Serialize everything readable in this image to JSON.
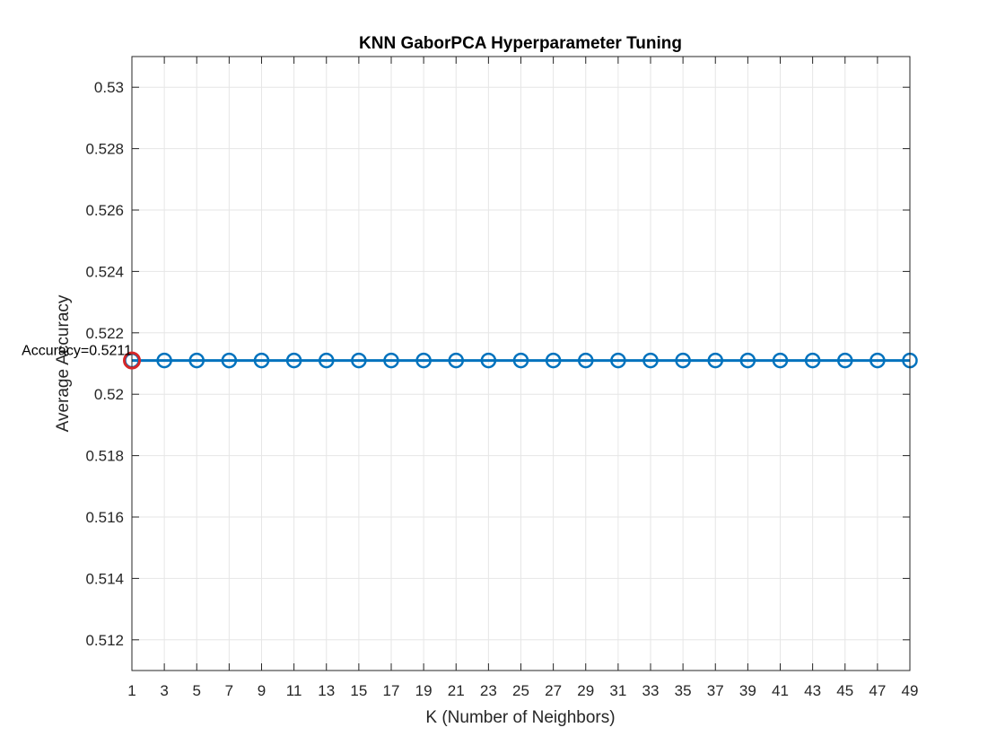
{
  "chart_data": {
    "type": "line",
    "title": "KNN GaborPCA Hyperparameter Tuning",
    "xlabel": "K (Number of Neighbors)",
    "ylabel": "Average Accuracy",
    "xlim": [
      1,
      49
    ],
    "ylim": [
      0.511,
      0.531
    ],
    "x_ticks": [
      1,
      3,
      5,
      7,
      9,
      11,
      13,
      15,
      17,
      19,
      21,
      23,
      25,
      27,
      29,
      31,
      33,
      35,
      37,
      39,
      41,
      43,
      45,
      47,
      49
    ],
    "y_ticks": [
      0.512,
      0.514,
      0.516,
      0.518,
      0.52,
      0.522,
      0.524,
      0.526,
      0.528,
      0.53
    ],
    "grid": true,
    "series": [
      {
        "x": [
          1,
          3,
          5,
          7,
          9,
          11,
          13,
          15,
          17,
          19,
          21,
          23,
          25,
          27,
          29,
          31,
          33,
          35,
          37,
          39,
          41,
          43,
          45,
          47,
          49
        ],
        "y": [
          0.5211,
          0.5211,
          0.5211,
          0.5211,
          0.5211,
          0.5211,
          0.5211,
          0.5211,
          0.5211,
          0.5211,
          0.5211,
          0.5211,
          0.5211,
          0.5211,
          0.5211,
          0.5211,
          0.5211,
          0.5211,
          0.5211,
          0.5211,
          0.5211,
          0.5211,
          0.5211,
          0.5211,
          0.5211
        ],
        "color": "#0072BD",
        "marker": "circle"
      }
    ],
    "highlight": {
      "x": 1,
      "y": 0.5211,
      "color": "#D62728",
      "label": "Accuracy=0.5211"
    }
  }
}
